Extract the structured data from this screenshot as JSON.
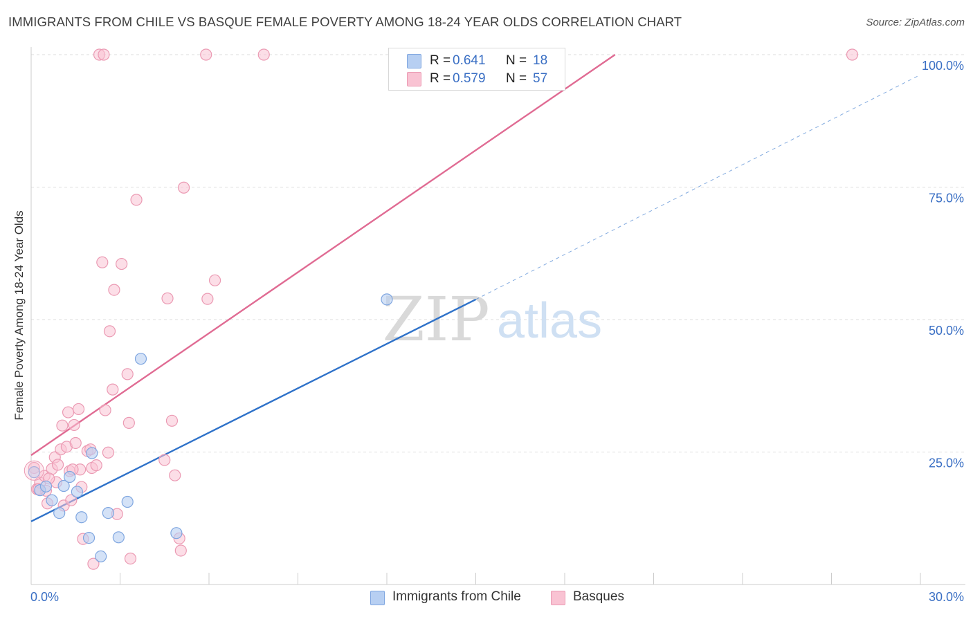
{
  "title": "IMMIGRANTS FROM CHILE VS BASQUE FEMALE POVERTY AMONG 18-24 YEAR OLDS CORRELATION CHART",
  "source": "Source: ZipAtlas.com",
  "watermark": {
    "zip": "ZIP",
    "atlas": "atlas"
  },
  "legend": {
    "rows": [
      {
        "r_label": "R =",
        "r_value": "0.641",
        "n_label": "N =",
        "n_value": "18"
      },
      {
        "r_label": "R =",
        "r_value": "0.579",
        "n_label": "N =",
        "n_value": "57"
      }
    ]
  },
  "bottom_legend": [
    {
      "label": "Immigrants from Chile"
    },
    {
      "label": "Basques"
    }
  ],
  "colors": {
    "chile_fill": "#b7cff2",
    "chile_stroke": "#7fa6e0",
    "chile_line": "#2f72c9",
    "basque_fill": "#f9c3d3",
    "basque_stroke": "#eb9ab3",
    "basque_line": "#e06b93",
    "axis_text": "#3a6fc4",
    "grid": "#dcdcdc"
  },
  "chart_data": {
    "type": "scatter",
    "title": "IMMIGRANTS FROM CHILE VS BASQUE FEMALE POVERTY AMONG 18-24 YEAR OLDS CORRELATION CHART",
    "xlabel": "",
    "ylabel": "Female Poverty Among 18-24 Year Olds",
    "xlim": [
      0,
      30
    ],
    "ylim": [
      0,
      102
    ],
    "x_tick_labels": [
      {
        "value": 0,
        "label": "0.0%"
      },
      {
        "value": 30,
        "label": "30.0%"
      }
    ],
    "y_tick_labels": [
      {
        "value": 25,
        "label": "25.0%"
      },
      {
        "value": 50,
        "label": "50.0%"
      },
      {
        "value": 75,
        "label": "75.0%"
      },
      {
        "value": 100,
        "label": "100.0%"
      }
    ],
    "grid": true,
    "series": [
      {
        "name": "Immigrants from Chile",
        "r": 0.641,
        "n": 18,
        "points": [
          [
            0.1,
            21.2
          ],
          [
            0.3,
            17.8
          ],
          [
            0.5,
            18.5
          ],
          [
            0.7,
            15.9
          ],
          [
            0.95,
            13.5
          ],
          [
            1.1,
            18.6
          ],
          [
            1.3,
            20.3
          ],
          [
            1.55,
            17.5
          ],
          [
            1.7,
            12.7
          ],
          [
            1.95,
            8.8
          ],
          [
            2.05,
            24.8
          ],
          [
            2.35,
            5.3
          ],
          [
            2.6,
            13.5
          ],
          [
            2.95,
            8.9
          ],
          [
            3.25,
            15.6
          ],
          [
            3.7,
            42.6
          ],
          [
            4.9,
            9.7
          ],
          [
            12.0,
            53.8
          ]
        ],
        "trend": {
          "x0": 0,
          "y0": 11.9,
          "x1": 15.0,
          "y1": 53.8
        },
        "trend_extension": {
          "x0": 15.0,
          "y0": 53.8,
          "x1": 30.0,
          "y1": 96.2
        }
      },
      {
        "name": "Basques",
        "r": 0.579,
        "n": 57,
        "points": [
          [
            0.1,
            22.0
          ],
          [
            0.2,
            18.0
          ],
          [
            0.3,
            19.2
          ],
          [
            0.45,
            20.5
          ],
          [
            0.5,
            17.7
          ],
          [
            0.55,
            15.3
          ],
          [
            0.7,
            21.8
          ],
          [
            0.8,
            24.0
          ],
          [
            0.85,
            19.3
          ],
          [
            0.9,
            22.6
          ],
          [
            1.0,
            25.5
          ],
          [
            1.05,
            30.0
          ],
          [
            1.1,
            14.9
          ],
          [
            1.2,
            26.0
          ],
          [
            1.25,
            32.5
          ],
          [
            1.3,
            21.4
          ],
          [
            1.35,
            15.9
          ],
          [
            1.45,
            30.1
          ],
          [
            1.5,
            26.7
          ],
          [
            1.6,
            33.1
          ],
          [
            1.65,
            21.7
          ],
          [
            1.7,
            18.4
          ],
          [
            1.75,
            8.6
          ],
          [
            1.9,
            25.2
          ],
          [
            2.0,
            25.5
          ],
          [
            2.05,
            22.0
          ],
          [
            2.1,
            3.9
          ],
          [
            2.2,
            22.5
          ],
          [
            2.3,
            100.0
          ],
          [
            2.4,
            60.8
          ],
          [
            2.45,
            100.0
          ],
          [
            2.5,
            32.9
          ],
          [
            2.6,
            24.9
          ],
          [
            2.65,
            47.8
          ],
          [
            2.75,
            36.8
          ],
          [
            2.8,
            55.6
          ],
          [
            2.9,
            13.3
          ],
          [
            3.05,
            60.5
          ],
          [
            3.25,
            39.7
          ],
          [
            3.3,
            30.5
          ],
          [
            3.35,
            4.9
          ],
          [
            3.55,
            72.6
          ],
          [
            4.5,
            23.5
          ],
          [
            4.6,
            54.0
          ],
          [
            4.75,
            30.9
          ],
          [
            4.85,
            20.6
          ],
          [
            5.0,
            8.7
          ],
          [
            5.05,
            6.4
          ],
          [
            5.15,
            74.9
          ],
          [
            5.9,
            100.0
          ],
          [
            5.95,
            53.9
          ],
          [
            6.2,
            57.4
          ],
          [
            7.85,
            100.0
          ],
          [
            27.7,
            100.0
          ],
          [
            0.25,
            18.0
          ],
          [
            0.6,
            20.0
          ],
          [
            1.4,
            21.7
          ]
        ],
        "trend": {
          "x0": 0,
          "y0": 24.4,
          "x1": 19.7,
          "y1": 100.0
        }
      }
    ]
  }
}
